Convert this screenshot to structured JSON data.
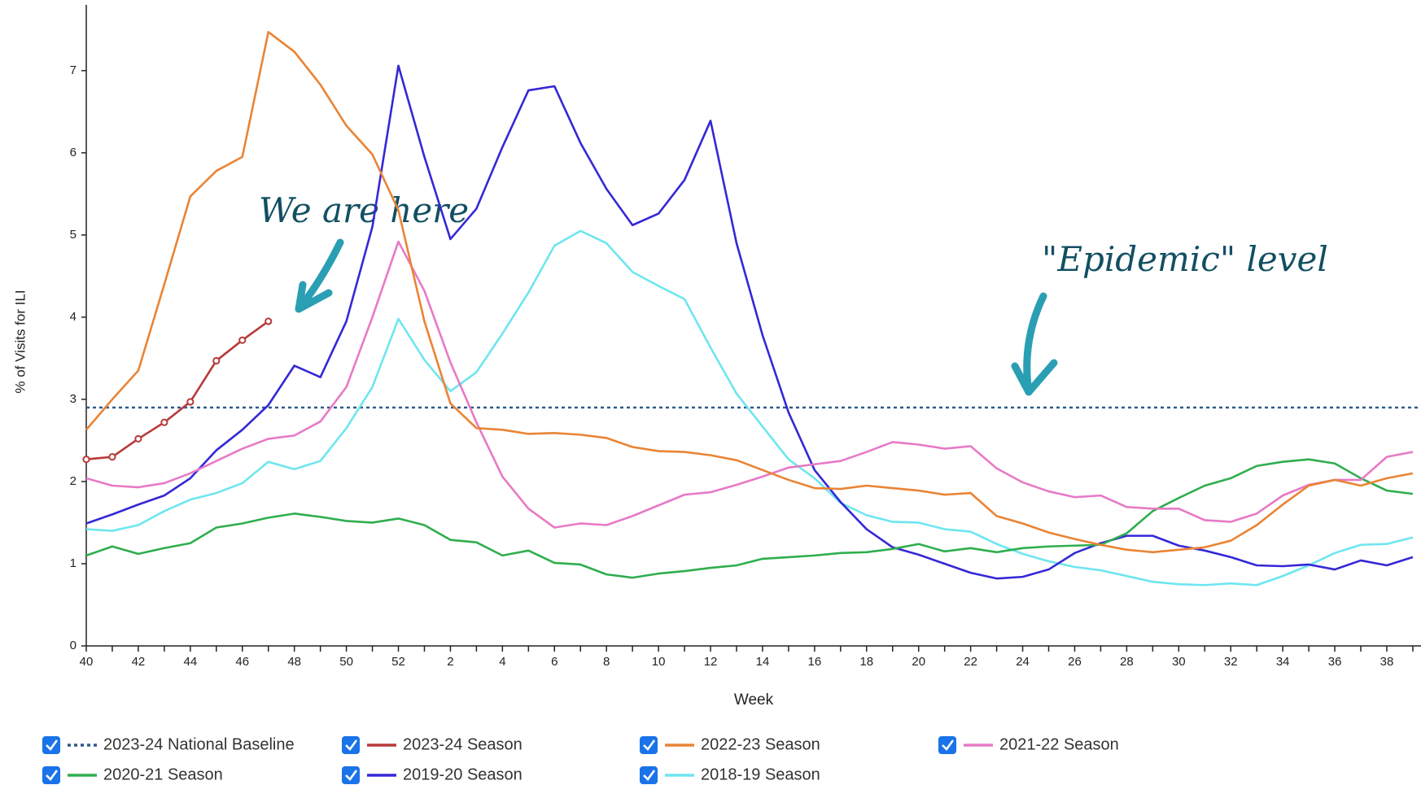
{
  "chart_data": {
    "type": "line",
    "y_label": "% of Visits for ILI",
    "x_label": "Week",
    "categories": [
      "40",
      null,
      "42",
      null,
      "44",
      null,
      "46",
      null,
      "48",
      null,
      "50",
      null,
      "52",
      null,
      "2",
      null,
      "4",
      null,
      "6",
      null,
      "8",
      null,
      "10",
      null,
      "12",
      null,
      "14",
      null,
      "16",
      null,
      "18",
      null,
      "20",
      null,
      "22",
      null,
      "24",
      null,
      "26",
      null,
      "28",
      null,
      "30",
      null,
      "32",
      null,
      "34",
      null,
      "36",
      null,
      "38",
      null
    ],
    "ylim": [
      0,
      7.8
    ],
    "yticks": [
      0,
      1,
      2,
      3,
      4,
      5,
      6,
      7
    ],
    "baseline": {
      "name": "2023-24 National Baseline",
      "value": 2.9,
      "color": "#2e5a8a"
    },
    "series": [
      {
        "name": "2023-24 Season",
        "color": "#b83a3a",
        "markers": true,
        "values": [
          2.27,
          2.3,
          2.52,
          2.72,
          2.97,
          3.47,
          3.72,
          3.95,
          null,
          null,
          null,
          null,
          null,
          null,
          null,
          null,
          null,
          null,
          null,
          null,
          null,
          null,
          null,
          null,
          null,
          null,
          null,
          null,
          null,
          null,
          null,
          null,
          null,
          null,
          null,
          null,
          null,
          null,
          null,
          null,
          null,
          null,
          null,
          null,
          null,
          null,
          null,
          null,
          null,
          null,
          null,
          null
        ]
      },
      {
        "name": "2022-23 Season",
        "color": "#ea8434",
        "values": [
          2.63,
          3.0,
          3.35,
          4.4,
          5.47,
          5.78,
          5.95,
          7.47,
          7.23,
          6.83,
          6.33,
          5.98,
          5.3,
          3.95,
          2.95,
          2.65,
          2.63,
          2.58,
          2.59,
          2.57,
          2.53,
          2.42,
          2.37,
          2.36,
          2.32,
          2.26,
          2.14,
          2.02,
          1.92,
          1.91,
          1.95,
          1.92,
          1.89,
          1.84,
          1.86,
          1.58,
          1.49,
          1.38,
          1.3,
          1.23,
          1.17,
          1.14,
          1.17,
          1.2,
          1.28,
          1.47,
          1.72,
          1.95,
          2.02,
          1.95,
          2.04,
          2.1
        ]
      },
      {
        "name": "2021-22 Season",
        "color": "#e77ac6",
        "values": [
          2.04,
          1.95,
          1.93,
          1.98,
          2.1,
          2.25,
          2.4,
          2.52,
          2.56,
          2.73,
          3.15,
          4.0,
          4.92,
          4.32,
          3.45,
          2.72,
          2.06,
          1.67,
          1.44,
          1.49,
          1.47,
          1.58,
          1.71,
          1.84,
          1.87,
          1.96,
          2.06,
          2.17,
          2.21,
          2.25,
          2.36,
          2.48,
          2.45,
          2.4,
          2.43,
          2.16,
          1.99,
          1.88,
          1.81,
          1.83,
          1.69,
          1.67,
          1.67,
          1.53,
          1.51,
          1.61,
          1.83,
          1.96,
          2.02,
          2.02,
          2.3,
          2.36
        ]
      },
      {
        "name": "2020-21 Season",
        "color": "#2fae4e",
        "values": [
          1.1,
          1.21,
          1.12,
          1.19,
          1.25,
          1.44,
          1.49,
          1.56,
          1.61,
          1.57,
          1.52,
          1.5,
          1.55,
          1.47,
          1.29,
          1.26,
          1.1,
          1.16,
          1.01,
          0.99,
          0.87,
          0.83,
          0.88,
          0.91,
          0.95,
          0.98,
          1.06,
          1.08,
          1.1,
          1.13,
          1.14,
          1.18,
          1.24,
          1.15,
          1.19,
          1.14,
          1.19,
          1.21,
          1.22,
          1.23,
          1.37,
          1.64,
          1.8,
          1.95,
          2.04,
          2.19,
          2.24,
          2.27,
          2.22,
          2.04,
          1.89,
          1.85
        ]
      },
      {
        "name": "2019-20 Season",
        "color": "#3528d6",
        "values": [
          1.49,
          1.6,
          1.72,
          1.83,
          2.04,
          2.38,
          2.63,
          2.93,
          3.41,
          3.27,
          3.95,
          5.1,
          7.06,
          5.95,
          4.95,
          5.32,
          6.07,
          6.76,
          6.81,
          6.12,
          5.56,
          5.12,
          5.26,
          5.67,
          6.39,
          4.9,
          3.78,
          2.84,
          2.14,
          1.75,
          1.42,
          1.2,
          1.11,
          1.0,
          0.89,
          0.82,
          0.84,
          0.93,
          1.13,
          1.25,
          1.34,
          1.34,
          1.22,
          1.16,
          1.08,
          0.98,
          0.97,
          0.99,
          0.93,
          1.04,
          0.98,
          1.08
        ]
      },
      {
        "name": "2018-19 Season",
        "color": "#6ee6ef",
        "values": [
          1.42,
          1.4,
          1.47,
          1.64,
          1.78,
          1.86,
          1.98,
          2.24,
          2.15,
          2.25,
          2.65,
          3.15,
          3.98,
          3.48,
          3.1,
          3.33,
          3.8,
          4.3,
          4.87,
          5.05,
          4.9,
          4.55,
          4.38,
          4.22,
          3.63,
          3.07,
          2.67,
          2.27,
          2.04,
          1.74,
          1.59,
          1.51,
          1.5,
          1.42,
          1.39,
          1.24,
          1.12,
          1.03,
          0.96,
          0.92,
          0.85,
          0.78,
          0.75,
          0.74,
          0.76,
          0.74,
          0.85,
          0.98,
          1.13,
          1.23,
          1.24,
          1.32
        ]
      }
    ],
    "annotations": [
      "We are here",
      "\"Epidemic\" level"
    ]
  }
}
